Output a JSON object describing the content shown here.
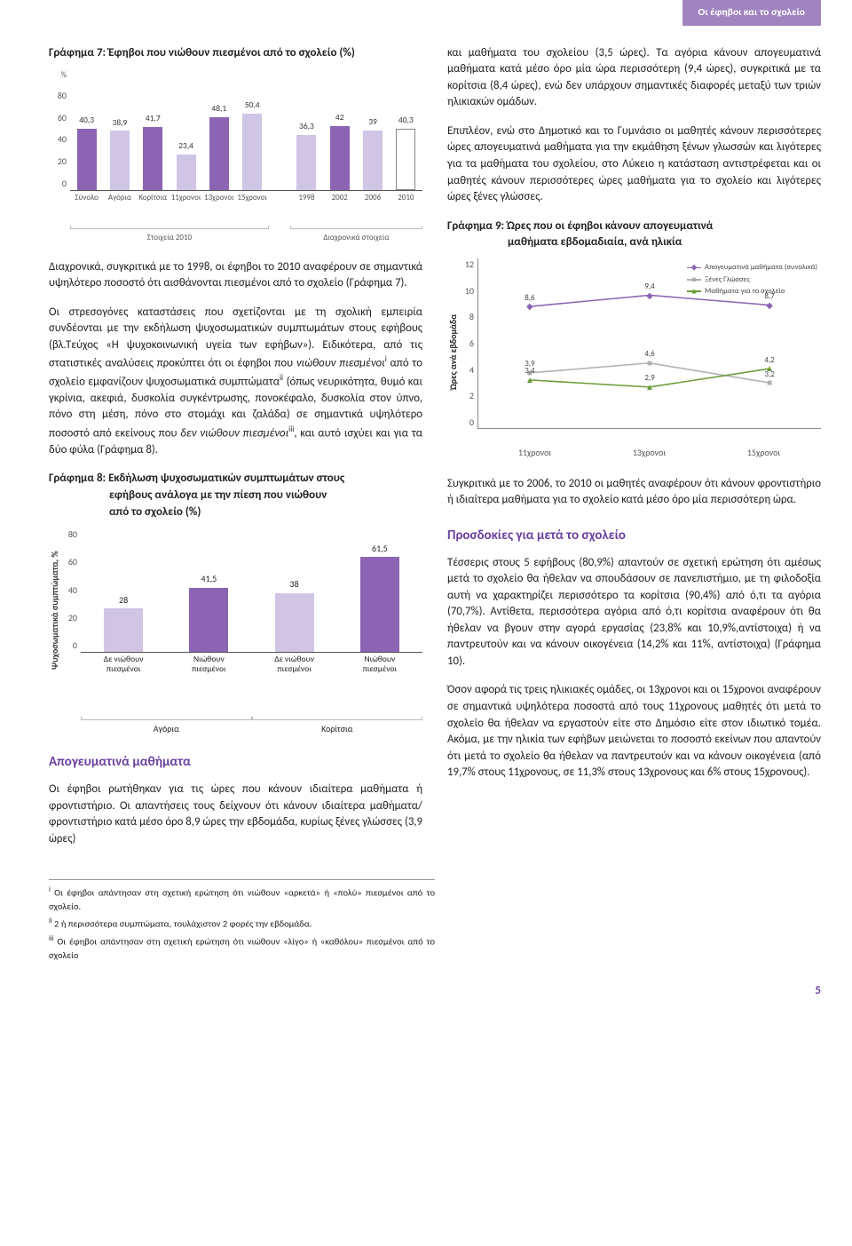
{
  "header_tab": "Οι έφηβοι και το σχολείο",
  "page_number": "5",
  "chart7": {
    "title_prefix": "Γράφημα 7:",
    "title": "Έφηβοι που νιώθουν πιεσμένοι από το σχολείο (%)",
    "y_unit": "%",
    "ymax": 80,
    "yticks": [
      "80",
      "60",
      "40",
      "20",
      "0"
    ],
    "left": {
      "panel_label": "Στοιχεία 2010",
      "series": [
        {
          "cat": "Σύνολο",
          "val": 40.3,
          "label": "40,3",
          "color": "#8c64b4"
        },
        {
          "cat": "Αγόρια",
          "val": 38.9,
          "label": "38,9",
          "color": "#d1c5e6"
        },
        {
          "cat": "Κορίτσια",
          "val": 41.7,
          "label": "41,7",
          "color": "#8c64b4"
        },
        {
          "cat": "11χρονοι",
          "val": 23.4,
          "label": "23,4",
          "color": "#d1c5e6"
        },
        {
          "cat": "13χρονοι",
          "val": 48.1,
          "label": "48,1",
          "color": "#8c64b4"
        },
        {
          "cat": "15χρονοι",
          "val": 50.4,
          "label": "50,4",
          "color": "#d1c5e6"
        }
      ]
    },
    "right": {
      "panel_label": "Διαχρονικά στοιχεία",
      "series": [
        {
          "cat": "1998",
          "val": 36.3,
          "label": "36,3",
          "color": "#d1c5e6"
        },
        {
          "cat": "2002",
          "val": 42,
          "label": "42",
          "color": "#8c64b4"
        },
        {
          "cat": "2006",
          "val": 39,
          "label": "39",
          "color": "#d1c5e6"
        },
        {
          "cat": "2010",
          "val": 40.3,
          "label": "40,3",
          "color": "#ffffff",
          "border": "#888"
        }
      ]
    }
  },
  "para_c7_1": "Διαχρονικά, συγκριτικά με το 1998, οι έφηβοι το 2010 αναφέρουν σε σημαντικά υψηλότερο ποσοστό ότι αισθάνονται πιεσμένοι από το σχολείο (Γράφημα 7).",
  "para_c7_2a": "Οι στρεσογόνες καταστάσεις που σχετίζονται με τη σχολική εμπειρία συνδέονται με την εκδήλωση ψυχοσωματικών συμπτωμάτων στους εφήβους (βλ.Τεύχος «Η ψυχοκοινω­νική υγεία των εφήβων»). Ειδικότερα, από τις στατιστικές αναλύσεις προκύπτει ότι οι έφηβοι που ",
  "para_c7_2_emph1": "νιώθουν πιεσμένοι",
  "para_c7_2b": " από το σχολείο εμφανίζουν ψυχοσωματικά συμπτώματα",
  "para_c7_2c": " (όπως νευρικότητα, θυμό και γκρίνια, ακεφιά, δυσκολία συγκέντρωσης, πονοκέφαλο, δυσκολία στον ύπνο, πόνο στη μέση, πόνο στο στομάχι και ζαλάδα) σε σημαντικά υψηλότερο ποσοστό από εκείνους που ",
  "para_c7_2_emph2": "δεν νιώθουν πιε­σμένοι",
  "para_c7_2d": ", και αυτό ισχύει και για τα δύο φύλα (Γράφημα 8).",
  "chart8": {
    "title_prefix": "Γράφημα 8:",
    "title_l1": "Εκδήλωση ψυχοσωματικών συμπτωμάτων στους",
    "title_l2": "εφήβους ανάλογα με την πίεση που νιώθουν",
    "title_l3": "από το σχολείο (%)",
    "ylabel": "Ψυχοσωματικά συμπτώματα, %",
    "ymax": 80,
    "yticks": [
      "80",
      "60",
      "40",
      "20",
      "0"
    ],
    "bars": [
      {
        "cat": "Δε νιώθουν\nπιεσμένοι",
        "val": 28,
        "label": "28",
        "color": "#d1c5e6"
      },
      {
        "cat": "Νιώθουν\nπιεσμένοι",
        "val": 41.5,
        "label": "41,5",
        "color": "#8c64b4"
      },
      {
        "cat": "Δε νιώθουν\nπιεσμένοι",
        "val": 38,
        "label": "38",
        "color": "#d1c5e6"
      },
      {
        "cat": "Νιώθουν\nπιεσμένοι",
        "val": 61.5,
        "label": "61,5",
        "color": "#8c64b4"
      }
    ],
    "group1": "Αγόρια",
    "group2": "Κορίτσια"
  },
  "sec_a_title": "Απογευματινά μαθήματα",
  "para_a1": "Οι έφηβοι ρωτήθηκαν για τις ώρες που κάνουν ιδιαίτερα μαθήματα ή φροντιστήριο. Οι απαντήσεις τους δείχνουν ότι κάνουν ιδιαίτερα μαθήματα/φροντιστήριο κατά μέσο όρο 8,9 ώρες την εβδομάδα, κυρίως ξένες γλώσσες (3,9 ώρες)",
  "fn1_mark": "i",
  "fn2_mark": "ii",
  "fn3_mark": "iii",
  "fn1": "Οι έφηβοι απάντησαν στη σχετική ερώτηση ότι νιώθουν «αρκετά» ή «πολύ» πιεσμένοι από το σχολείο.",
  "fn2": "2 ή περισσότερα συμπτώματα, τουλάχιστον 2 φορές την εβδομάδα.",
  "fn3": "Οι έφηβοι απάντησαν στη σχετική ερώτηση ότι νιώθουν «λίγο» ή «καθόλου» πιεσμένοι από το σχολείο",
  "para_r1": "και μαθήματα του σχολείου (3,5 ώρες). Τα αγόρια κάνουν απογευματινά μαθήματα κατά μέσο όρο μία ώρα περισσότερη (9,4 ώρες), συγκριτικά με τα κορίτσια (8,4 ώρες), ενώ δεν υπάρχουν σημαντικές διαφορές μεταξύ των τριών ηλικιακών ομάδων.",
  "para_r2": "Επιπλέον, ενώ στο Δημοτικό και το Γυμνάσιο οι μαθητές κάνουν περισσότερες ώρες απογευματινά μαθήματα για την εκμάθηση ξένων γλωσσών και λιγότερες για τα μαθήματα του σχολείου, στο Λύκειο η κατάσταση αντιστρέφεται και οι μαθητές κάνουν περισσότερες ώρες μαθήματα για το σχολείο και λιγότερες ώρες ξένες γλώσσες.",
  "chart9": {
    "title_prefix": "Γράφημα 9:",
    "title_l1": "Ώρες που οι έφηβοι κάνουν απογευματινά",
    "title_l2": "μαθήματα εβδομαδιαία, ανά ηλικία",
    "ylabel": "Ώρες ανά εβδομάδα",
    "ymax": 12,
    "yticks": [
      "12",
      "10",
      "8",
      "6",
      "4",
      "2",
      "0"
    ],
    "xcats": [
      "11χρονοι",
      "13χρονοι",
      "15χρονοι"
    ],
    "legend": [
      {
        "label": "Απογευματινά μαθήματα (συνολικά)",
        "color": "#8c64b4",
        "mark": "◆"
      },
      {
        "label": "Ξένες Γλώσσες",
        "color": "#b0b0b0",
        "mark": "■"
      },
      {
        "label": "Μαθήματα για το σχολείο",
        "color": "#6b9b37",
        "mark": "▲"
      }
    ],
    "series": [
      {
        "name": "total",
        "color": "#8c64b4",
        "mark": "◆",
        "points": [
          {
            "x": 0,
            "y": 8.6,
            "l": "8,6"
          },
          {
            "x": 1,
            "y": 9.4,
            "l": "9,4"
          },
          {
            "x": 2,
            "y": 8.7,
            "l": "8,7"
          }
        ]
      },
      {
        "name": "foreign",
        "color": "#b0b0b0",
        "mark": "■",
        "points": [
          {
            "x": 0,
            "y": 3.9,
            "l": "3,9"
          },
          {
            "x": 1,
            "y": 4.6,
            "l": "4,6"
          },
          {
            "x": 2,
            "y": 3.2,
            "l": "3,2"
          }
        ]
      },
      {
        "name": "school",
        "color": "#6b9b37",
        "mark": "▲",
        "points": [
          {
            "x": 0,
            "y": 3.4,
            "l": "3,4"
          },
          {
            "x": 1,
            "y": 2.9,
            "l": "2,9"
          },
          {
            "x": 2,
            "y": 4.2,
            "l": "4,2"
          }
        ]
      }
    ]
  },
  "para_r3": "Συγκριτικά με το 2006, το 2010 οι μαθητές αναφέρουν ότι κάνουν φροντιστήριο ή ιδιαίτερα μαθήματα για το σχολείο κατά μέσο όρο μία περισσότερη ώρα.",
  "sec_b_title": "Προσδοκίες για μετά το σχολείο",
  "para_r4": "Τέσσερις στους 5 εφήβους (80,9%) απαντούν σε σχετική ερώτηση ότι αμέσως μετά το σχολείο θα ήθελαν να σπουδάσουν σε πανεπιστήμιο, με τη φιλοδοξία αυτή να χαρακτηρίζει περισσότερο τα κορίτσια (90,4%) από ό,τι τα αγόρια (70,7%). Αντίθετα, περισσότερα αγόρια από ό,τι κορίτσια αναφέρουν ότι θα ήθελαν να βγουν στην αγορά εργασίας (23,8% και 10,9%,αντίστοιχα) ή να παντρευτούν και να κάνουν οικογένεια (14,2% και 11%, αντίστοιχα) (Γράφημα 10).",
  "para_r5": "Όσον αφορά τις τρεις ηλικιακές ομάδες, οι 13χρονοι και οι 15χρονοι αναφέρουν σε σημαντικά υψηλότερα ποσοστά από τους 11χρονους μαθητές ότι μετά το σχολείο θα ήθελαν να εργαστούν είτε στο Δημόσιο είτε στον ιδιωτικό τομέα. Ακόμα, με την ηλικία των εφήβων μειώνεται το ποσοστό εκείνων που απαντούν ότι μετά το σχολείο θα ήθελαν να παντρευτούν και να κάνουν οικογένεια (από 19,7% στους 11χρονους, σε 11,3% στους 13χρονους και 6% στους 15χρονους)."
}
